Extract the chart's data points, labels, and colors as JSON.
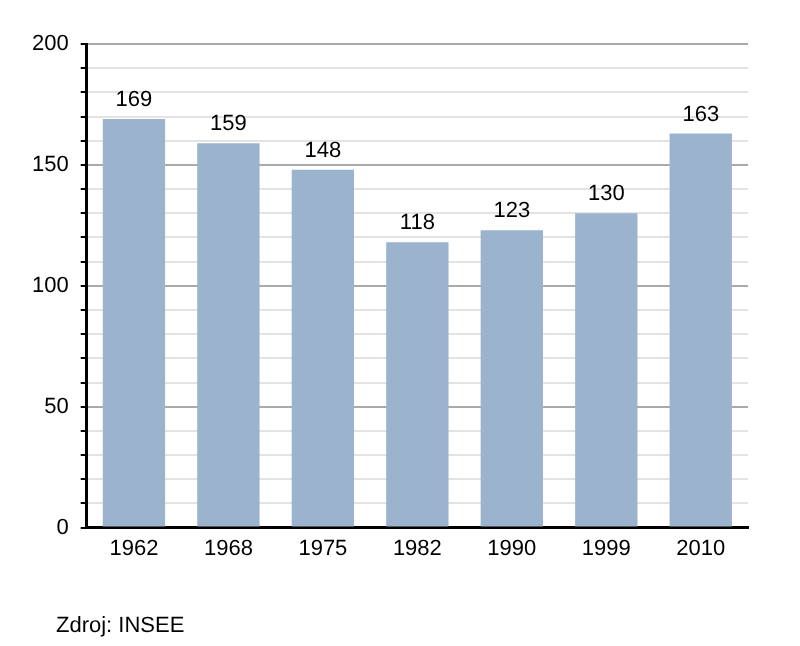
{
  "chart_data": {
    "type": "bar",
    "categories": [
      "1962",
      "1968",
      "1975",
      "1982",
      "1990",
      "1999",
      "2010"
    ],
    "values": [
      169,
      159,
      148,
      118,
      123,
      130,
      163
    ],
    "color": "#9bb3cc",
    "data_labels": true,
    "grid": "y",
    "ylim": [
      0,
      200
    ],
    "yticks": [
      0,
      {
        "value": 10,
        "label": null
      },
      {
        "value": 20,
        "label": null
      },
      {
        "value": 30,
        "label": null
      },
      {
        "value": 40,
        "label": null
      },
      50,
      {
        "value": 60,
        "label": null
      },
      {
        "value": 70,
        "label": null
      },
      {
        "value": 80,
        "label": null
      },
      {
        "value": 90,
        "label": null
      },
      100,
      {
        "value": 110,
        "label": null
      },
      {
        "value": 120,
        "label": null
      },
      {
        "value": 130,
        "label": null
      },
      {
        "value": 140,
        "label": null
      },
      150,
      {
        "value": 160,
        "label": null
      },
      {
        "value": 170,
        "label": null
      },
      {
        "value": 180,
        "label": null
      },
      {
        "value": 190,
        "label": null
      },
      200
    ],
    "annotations": [
      "Zdroj: INSEE"
    ]
  }
}
